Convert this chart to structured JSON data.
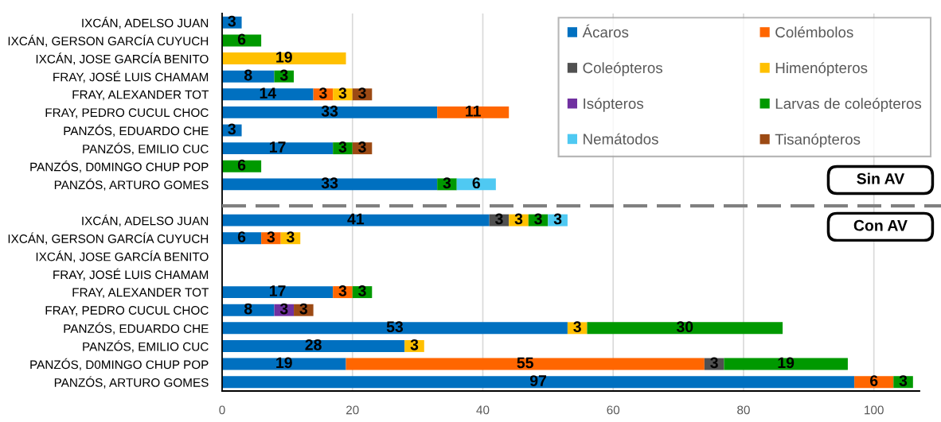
{
  "chart_data": {
    "type": "bar",
    "orientation": "horizontal",
    "stacked": true,
    "categories": [
      "IXCÁN, ADELSO JUAN",
      "IXCÁN, GERSON GARCÍA CUYUCH",
      "IXCÁN, JOSE GARCÍA BENITO",
      "FRAY, JOSÉ LUIS CHAMAM",
      "FRAY, ALEXANDER TOT",
      "FRAY, PEDRO CUCUL CHOC",
      "PANZÓS, EDUARDO CHE",
      "PANZÓS, EMILIO CUC",
      "PANZÓS, D0MINGO CHUP POP",
      "PANZÓS, ARTURO GOMES",
      null,
      "IXCÁN, ADELSO JUAN",
      "IXCÁN, GERSON GARCÍA CUYUCH",
      "IXCÁN, JOSE GARCÍA BENITO",
      "FRAY, JOSÉ LUIS CHAMAM",
      "FRAY, ALEXANDER TOT",
      "FRAY, PEDRO CUCUL CHOC",
      "PANZÓS, EDUARDO CHE",
      "PANZÓS, EMILIO CUC",
      "PANZÓS, D0MINGO CHUP POP",
      "PANZÓS, ARTURO GOMES"
    ],
    "series": [
      {
        "name": "Ácaros",
        "color": "#0070c0",
        "values": [
          3,
          null,
          null,
          8,
          14,
          33,
          3,
          17,
          null,
          33,
          null,
          41,
          6,
          null,
          null,
          17,
          8,
          53,
          28,
          19,
          97
        ]
      },
      {
        "name": "Colémbolos",
        "color": "#ff6600",
        "values": [
          null,
          null,
          null,
          null,
          3,
          11,
          null,
          null,
          null,
          null,
          null,
          null,
          3,
          null,
          null,
          3,
          null,
          null,
          null,
          55,
          6
        ]
      },
      {
        "name": "Coleópteros",
        "color": "#505050",
        "values": [
          null,
          null,
          null,
          null,
          null,
          null,
          null,
          null,
          null,
          null,
          null,
          3,
          null,
          null,
          null,
          null,
          null,
          null,
          null,
          3,
          null
        ]
      },
      {
        "name": "Himenópteros",
        "color": "#ffc000",
        "values": [
          null,
          null,
          19,
          null,
          3,
          null,
          null,
          null,
          null,
          null,
          null,
          3,
          3,
          null,
          null,
          null,
          null,
          3,
          3,
          null,
          null
        ]
      },
      {
        "name": "Isópteros",
        "color": "#7030a0",
        "values": [
          null,
          null,
          null,
          null,
          null,
          null,
          null,
          null,
          null,
          null,
          null,
          null,
          null,
          null,
          null,
          null,
          3,
          null,
          null,
          null,
          null
        ]
      },
      {
        "name": "Larvas de coleópteros",
        "color": "#009900",
        "values": [
          null,
          6,
          null,
          3,
          null,
          null,
          null,
          3,
          6,
          3,
          null,
          3,
          null,
          null,
          null,
          3,
          null,
          30,
          null,
          19,
          3
        ]
      },
      {
        "name": "Nemátodos",
        "color": "#4fc9f2",
        "values": [
          null,
          null,
          null,
          null,
          null,
          null,
          null,
          null,
          null,
          6,
          null,
          3,
          null,
          null,
          null,
          null,
          null,
          null,
          null,
          null,
          null
        ]
      },
      {
        "name": "Tisanópteros",
        "color": "#9c4a14",
        "values": [
          null,
          null,
          null,
          null,
          3,
          null,
          null,
          3,
          null,
          null,
          null,
          null,
          null,
          null,
          null,
          null,
          3,
          null,
          null,
          null,
          null
        ]
      }
    ],
    "xlim": [
      0,
      107
    ],
    "xticks": [
      0,
      20,
      40,
      60,
      80,
      100
    ],
    "grid": "x",
    "legend": "top right",
    "data_labels": true,
    "annotations": [
      "Sin AV",
      "Con AV"
    ]
  }
}
